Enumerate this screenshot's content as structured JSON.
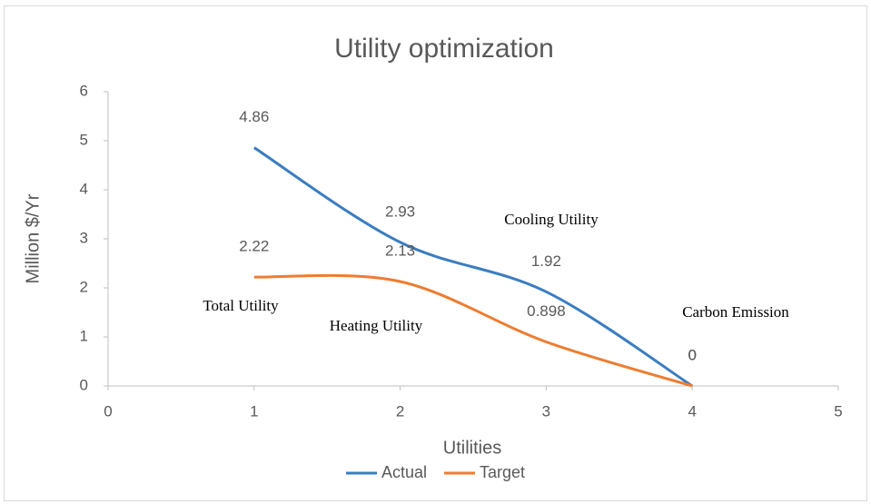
{
  "chart_data": {
    "type": "line",
    "title": "Utility optimization",
    "x_label": "Utilities",
    "y_label": "Million $/Yr",
    "x": [
      1,
      2,
      3,
      4
    ],
    "series": [
      {
        "name": "Actual",
        "color": "#3b7dc0",
        "values": [
          4.86,
          2.93,
          1.92,
          0
        ]
      },
      {
        "name": "Target",
        "color": "#ee7d31",
        "values": [
          2.22,
          2.13,
          0.898,
          0
        ]
      }
    ],
    "annotations": [
      "Total Utility",
      "Heating Utility",
      "Cooling Utility",
      "Carbon Emission"
    ],
    "xlim": [
      0,
      5
    ],
    "xticks": [
      0,
      1,
      2,
      3,
      4,
      5
    ],
    "ylim": [
      0,
      6
    ],
    "yticks": [
      0,
      1,
      2,
      3,
      4,
      5,
      6
    ],
    "smooth": true,
    "grid": false,
    "legend": "bottom"
  }
}
